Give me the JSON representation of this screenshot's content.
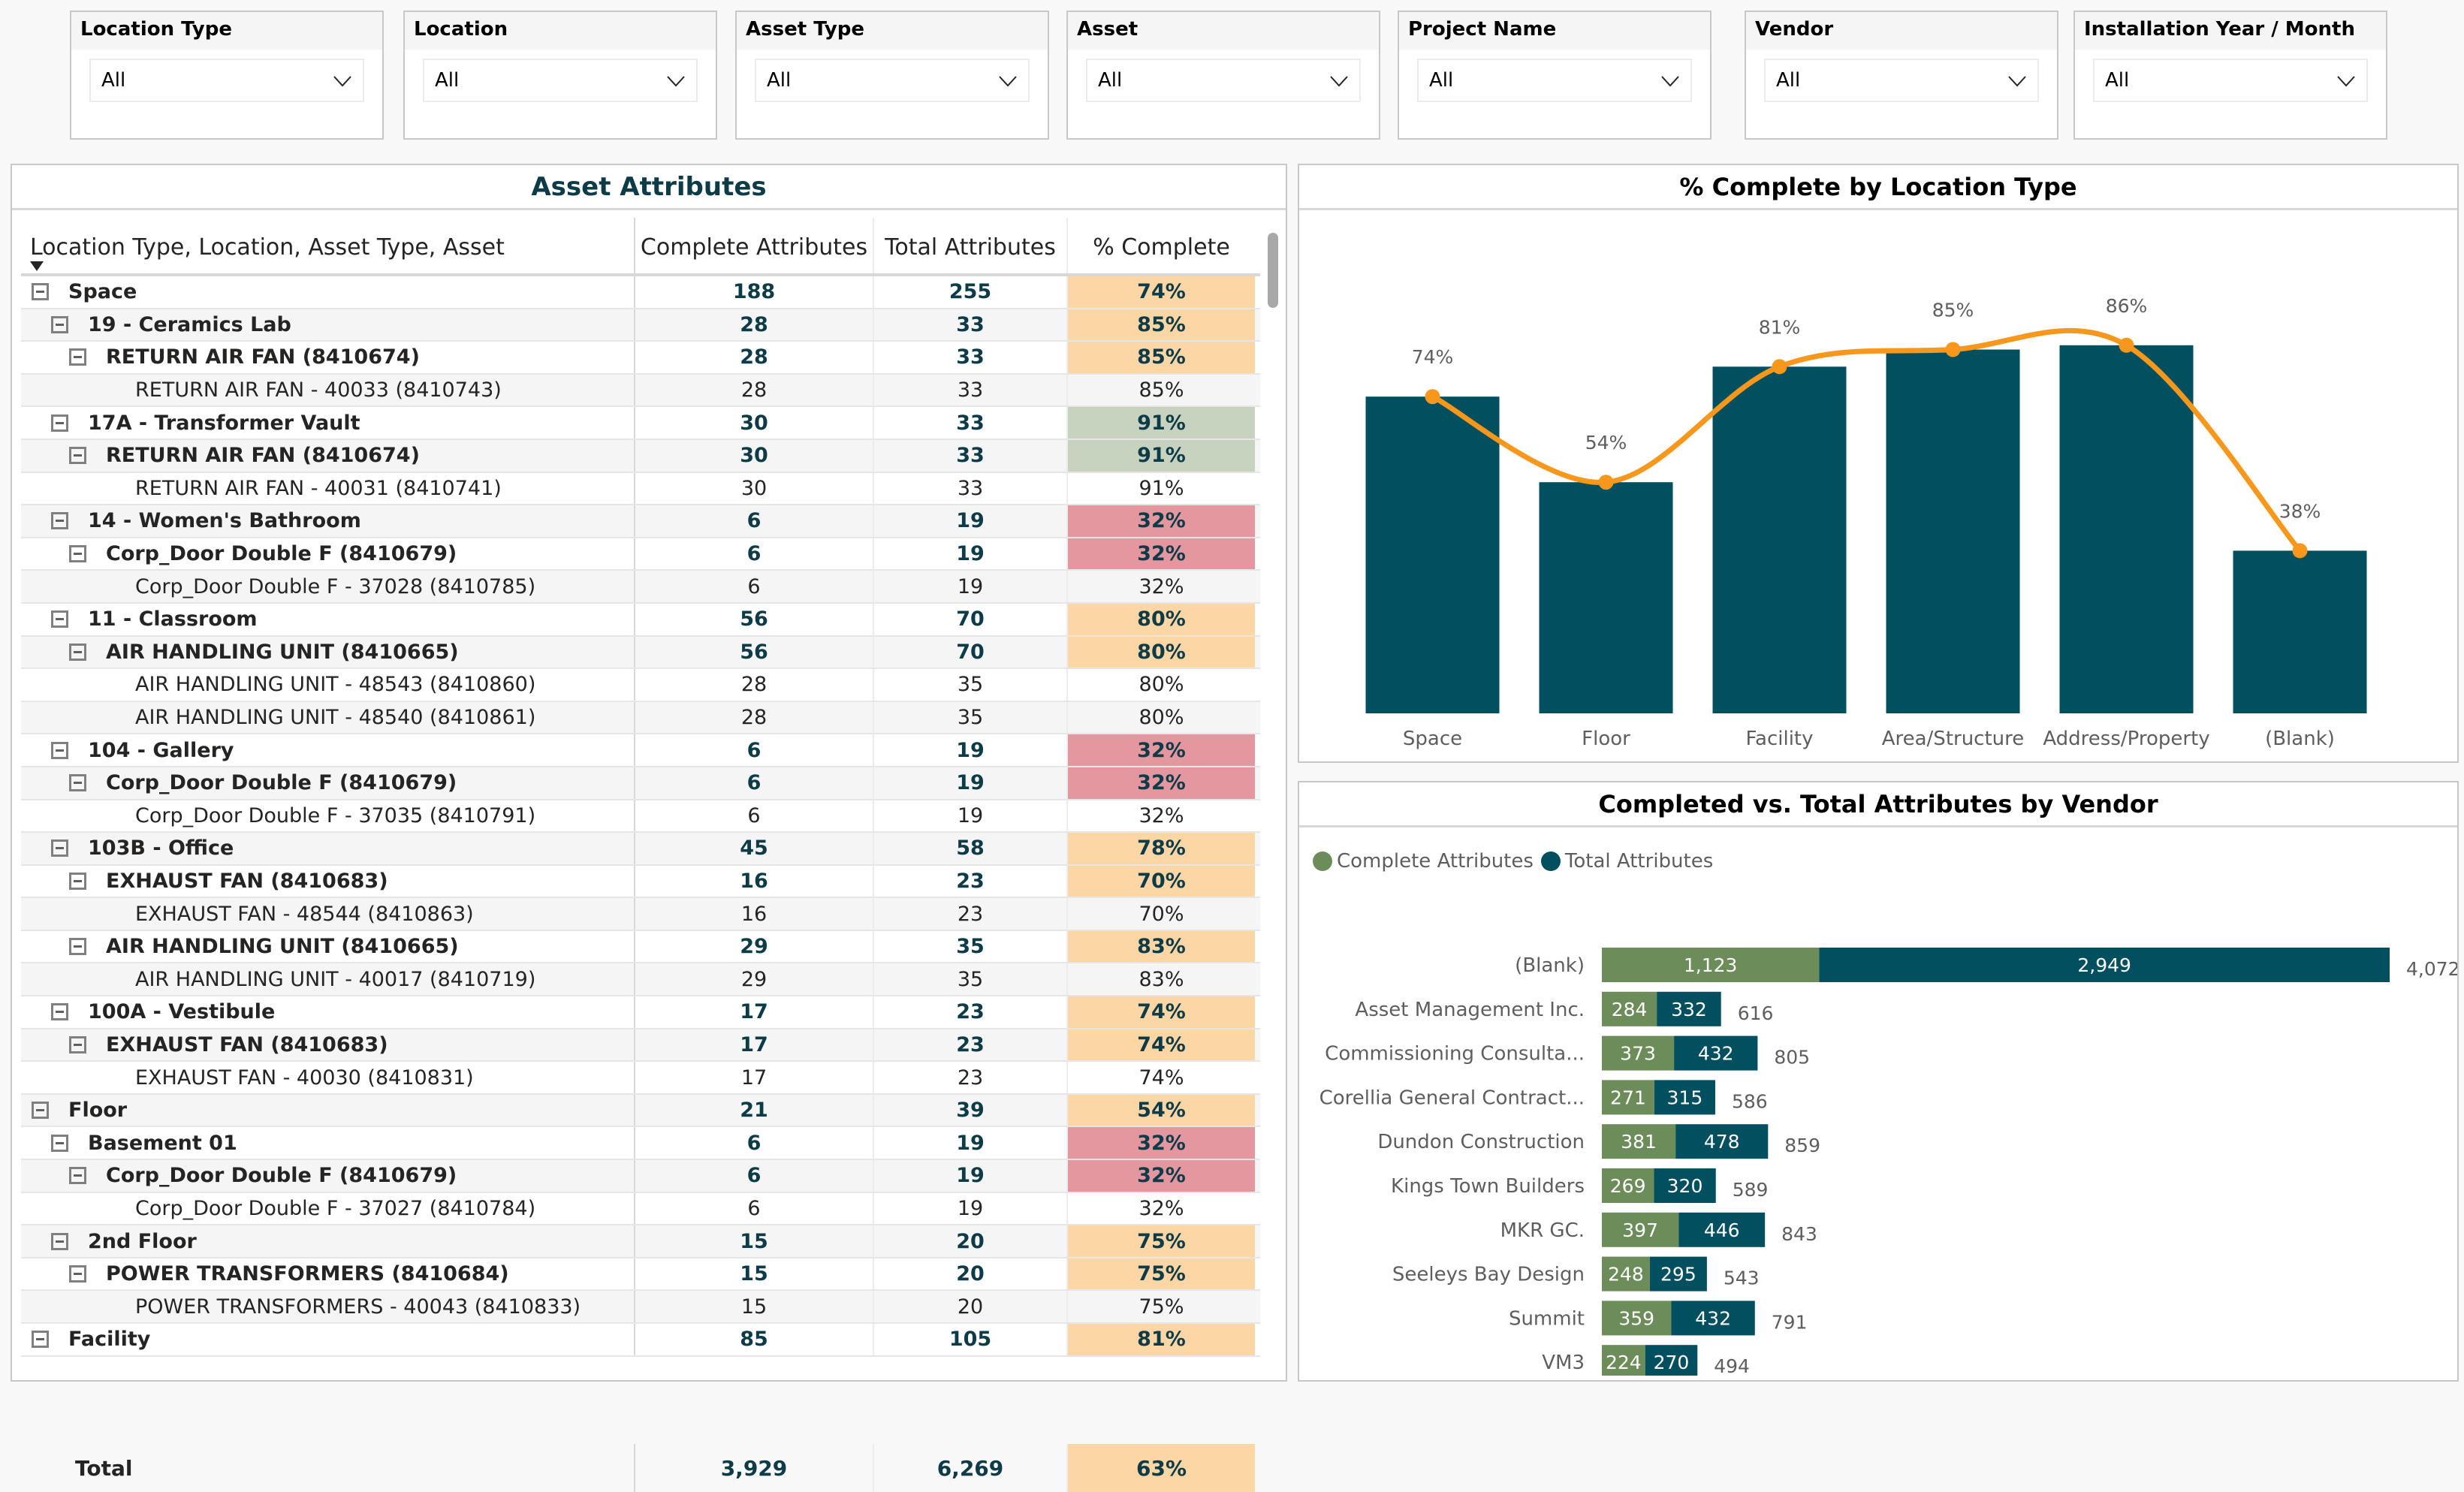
{
  "slicers": [
    {
      "label": "Location Type",
      "value": "All"
    },
    {
      "label": "Location",
      "value": "All"
    },
    {
      "label": "Asset Type",
      "value": "All"
    },
    {
      "label": "Asset",
      "value": "All"
    },
    {
      "label": "Project Name",
      "value": "All"
    },
    {
      "label": "Vendor",
      "value": "All"
    },
    {
      "label": "Installation Year / Month",
      "value": "All"
    }
  ],
  "matrix": {
    "title": "Asset Attributes",
    "columns": [
      "Location Type, Location, Asset Type, Asset",
      "Complete Attributes",
      "Total Attributes",
      "% Complete"
    ],
    "rows": [
      {
        "level": 0,
        "label": "Space",
        "complete": "188",
        "total": "255",
        "pct": "74%",
        "color": "orange"
      },
      {
        "level": 1,
        "label": "19 - Ceramics Lab",
        "complete": "28",
        "total": "33",
        "pct": "85%",
        "color": "orange"
      },
      {
        "level": 2,
        "label": "RETURN AIR FAN (8410674)",
        "complete": "28",
        "total": "33",
        "pct": "85%",
        "color": "orange"
      },
      {
        "level": 3,
        "label": "RETURN AIR FAN - 40033 (8410743)",
        "complete": "28",
        "total": "33",
        "pct": "85%",
        "color": ""
      },
      {
        "level": 1,
        "label": "17A - Transformer Vault",
        "complete": "30",
        "total": "33",
        "pct": "91%",
        "color": "green"
      },
      {
        "level": 2,
        "label": "RETURN AIR FAN (8410674)",
        "complete": "30",
        "total": "33",
        "pct": "91%",
        "color": "green"
      },
      {
        "level": 3,
        "label": "RETURN AIR FAN - 40031 (8410741)",
        "complete": "30",
        "total": "33",
        "pct": "91%",
        "color": ""
      },
      {
        "level": 1,
        "label": "14 - Women's Bathroom",
        "complete": "6",
        "total": "19",
        "pct": "32%",
        "color": "red"
      },
      {
        "level": 2,
        "label": "Corp_Door Double F (8410679)",
        "complete": "6",
        "total": "19",
        "pct": "32%",
        "color": "red"
      },
      {
        "level": 3,
        "label": "Corp_Door Double F - 37028 (8410785)",
        "complete": "6",
        "total": "19",
        "pct": "32%",
        "color": ""
      },
      {
        "level": 1,
        "label": "11 - Classroom",
        "complete": "56",
        "total": "70",
        "pct": "80%",
        "color": "orange"
      },
      {
        "level": 2,
        "label": "AIR HANDLING UNIT (8410665)",
        "complete": "56",
        "total": "70",
        "pct": "80%",
        "color": "orange"
      },
      {
        "level": 3,
        "label": "AIR HANDLING UNIT - 48543 (8410860)",
        "complete": "28",
        "total": "35",
        "pct": "80%",
        "color": ""
      },
      {
        "level": 3,
        "label": "AIR HANDLING UNIT - 48540 (8410861)",
        "complete": "28",
        "total": "35",
        "pct": "80%",
        "color": ""
      },
      {
        "level": 1,
        "label": "104 - Gallery",
        "complete": "6",
        "total": "19",
        "pct": "32%",
        "color": "red"
      },
      {
        "level": 2,
        "label": "Corp_Door Double F (8410679)",
        "complete": "6",
        "total": "19",
        "pct": "32%",
        "color": "red"
      },
      {
        "level": 3,
        "label": "Corp_Door Double F - 37035 (8410791)",
        "complete": "6",
        "total": "19",
        "pct": "32%",
        "color": ""
      },
      {
        "level": 1,
        "label": "103B - Office",
        "complete": "45",
        "total": "58",
        "pct": "78%",
        "color": "orange"
      },
      {
        "level": 2,
        "label": "EXHAUST FAN (8410683)",
        "complete": "16",
        "total": "23",
        "pct": "70%",
        "color": "orange"
      },
      {
        "level": 3,
        "label": "EXHAUST FAN - 48544 (8410863)",
        "complete": "16",
        "total": "23",
        "pct": "70%",
        "color": ""
      },
      {
        "level": 2,
        "label": "AIR HANDLING UNIT (8410665)",
        "complete": "29",
        "total": "35",
        "pct": "83%",
        "color": "orange"
      },
      {
        "level": 3,
        "label": "AIR HANDLING UNIT - 40017 (8410719)",
        "complete": "29",
        "total": "35",
        "pct": "83%",
        "color": ""
      },
      {
        "level": 1,
        "label": "100A - Vestibule",
        "complete": "17",
        "total": "23",
        "pct": "74%",
        "color": "orange"
      },
      {
        "level": 2,
        "label": "EXHAUST FAN (8410683)",
        "complete": "17",
        "total": "23",
        "pct": "74%",
        "color": "orange"
      },
      {
        "level": 3,
        "label": "EXHAUST FAN - 40030 (8410831)",
        "complete": "17",
        "total": "23",
        "pct": "74%",
        "color": ""
      },
      {
        "level": 0,
        "label": "Floor",
        "complete": "21",
        "total": "39",
        "pct": "54%",
        "color": "orange"
      },
      {
        "level": 1,
        "label": "Basement 01",
        "complete": "6",
        "total": "19",
        "pct": "32%",
        "color": "red"
      },
      {
        "level": 2,
        "label": "Corp_Door Double F (8410679)",
        "complete": "6",
        "total": "19",
        "pct": "32%",
        "color": "red"
      },
      {
        "level": 3,
        "label": "Corp_Door Double F - 37027 (8410784)",
        "complete": "6",
        "total": "19",
        "pct": "32%",
        "color": ""
      },
      {
        "level": 1,
        "label": "2nd Floor",
        "complete": "15",
        "total": "20",
        "pct": "75%",
        "color": "orange"
      },
      {
        "level": 2,
        "label": "POWER TRANSFORMERS (8410684)",
        "complete": "15",
        "total": "20",
        "pct": "75%",
        "color": "orange"
      },
      {
        "level": 3,
        "label": "POWER TRANSFORMERS - 40043 (8410833)",
        "complete": "15",
        "total": "20",
        "pct": "75%",
        "color": ""
      },
      {
        "level": 0,
        "label": "Facility",
        "complete": "85",
        "total": "105",
        "pct": "81%",
        "color": "orange"
      }
    ],
    "total": {
      "label": "Total",
      "complete": "3,929",
      "total": "6,269",
      "pct": "63%",
      "color": "orange"
    }
  },
  "chart_data": [
    {
      "type": "bar",
      "title": "% Complete by Location Type",
      "categories": [
        "Space",
        "Floor",
        "Facility",
        "Area/Structure",
        "Address/Property",
        "(Blank)"
      ],
      "series": [
        {
          "name": "% Complete (bar)",
          "values": [
            74,
            54,
            81,
            85,
            86,
            38
          ]
        },
        {
          "name": "% Complete (line)",
          "values": [
            74,
            54,
            81,
            85,
            86,
            38
          ]
        }
      ],
      "data_labels": [
        "74%",
        "54%",
        "81%",
        "85%",
        "86%",
        "38%"
      ],
      "xlabel": "",
      "ylabel": "",
      "ylim": [
        0,
        100
      ],
      "grid": false,
      "colors": {
        "bar": "#02505f",
        "line": "#f7971c"
      }
    },
    {
      "type": "bar",
      "orientation": "horizontal-stacked",
      "title": "Completed vs. Total Attributes by Vendor",
      "legend": [
        "Complete Attributes",
        "Total Attributes"
      ],
      "legend_position": "top-left",
      "categories": [
        "(Blank)",
        "Asset Management Inc.",
        "Commissioning Consulta...",
        "Corellia General Contract...",
        "Dundon Construction",
        "Kings Town Builders",
        "MKR GC.",
        "Seeleys Bay Design",
        "Summit",
        "VM3"
      ],
      "series": [
        {
          "name": "Complete Attributes",
          "values": [
            1123,
            284,
            373,
            271,
            381,
            269,
            397,
            248,
            359,
            224
          ]
        },
        {
          "name": "Total Attributes",
          "values": [
            2949,
            332,
            432,
            315,
            478,
            320,
            446,
            295,
            432,
            270
          ]
        }
      ],
      "segment_labels": {
        "complete": [
          "1,123",
          "284",
          "373",
          "271",
          "381",
          "269",
          "397",
          "248",
          "359",
          "224"
        ],
        "total": [
          "2,949",
          "332",
          "432",
          "315",
          "478",
          "320",
          "446",
          "295",
          "432",
          "270"
        ]
      },
      "sum_labels": [
        "4,072",
        "616",
        "805",
        "586",
        "859",
        "589",
        "843",
        "543",
        "791",
        "494"
      ],
      "colors": {
        "complete": "#6c8c5a",
        "total": "#02505f"
      }
    }
  ]
}
